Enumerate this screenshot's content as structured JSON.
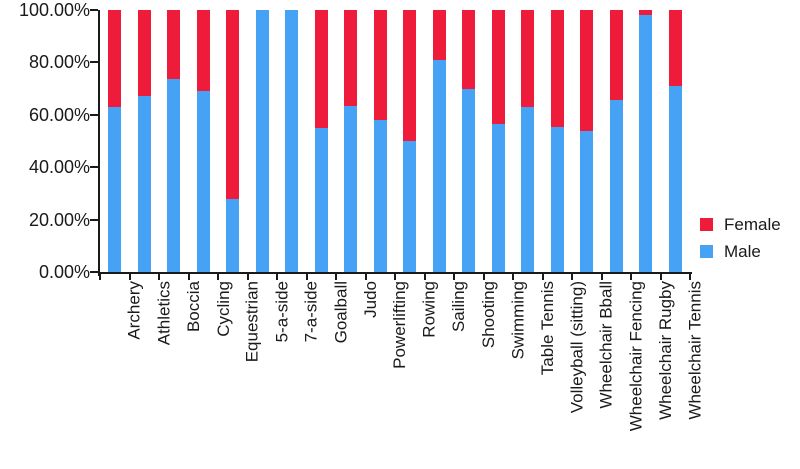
{
  "chart_data": {
    "type": "bar",
    "subtype": "stacked-100-percent",
    "title": "",
    "xlabel": "",
    "ylabel": "",
    "ylim": [
      0,
      100
    ],
    "grid": false,
    "legend_position": "right",
    "categories": [
      "Archery",
      "Athletics",
      "Boccia",
      "Cycling",
      "Equestrian",
      "5-a-side",
      "7-a-side",
      "Goalball",
      "Judo",
      "Powerlifting",
      "Rowing",
      "Sailing",
      "Shooting",
      "Swimming",
      "Table Tennis",
      "Volleyball (sitting)",
      "Wheelchair Bball",
      "Wheelchair Fencing",
      "Wheelchair Rugby",
      "Wheelchair Tennis"
    ],
    "series": [
      {
        "name": "Female",
        "color": "#EE1B3B",
        "values": [
          37,
          33,
          26.5,
          31,
          72,
          0,
          0,
          45,
          36.5,
          42,
          50,
          19,
          30,
          43.5,
          37,
          44.5,
          46,
          34.5,
          2,
          29
        ]
      },
      {
        "name": "Male",
        "color": "#45A2F4",
        "values": [
          63,
          67,
          73.5,
          69,
          28,
          100,
          100,
          55,
          63.5,
          58,
          50,
          81,
          70,
          56.5,
          63,
          55.5,
          54,
          65.5,
          98,
          71
        ]
      }
    ],
    "y_ticks": [
      {
        "label": "100.00%",
        "value": 100
      },
      {
        "label": "80.00%",
        "value": 80
      },
      {
        "label": "60.00%",
        "value": 60
      },
      {
        "label": "40.00%",
        "value": 40
      },
      {
        "label": "20.00%",
        "value": 20
      },
      {
        "label": "0.00%",
        "value": 0
      }
    ]
  },
  "legend": {
    "items": [
      {
        "label": "Female"
      },
      {
        "label": "Male"
      }
    ]
  }
}
